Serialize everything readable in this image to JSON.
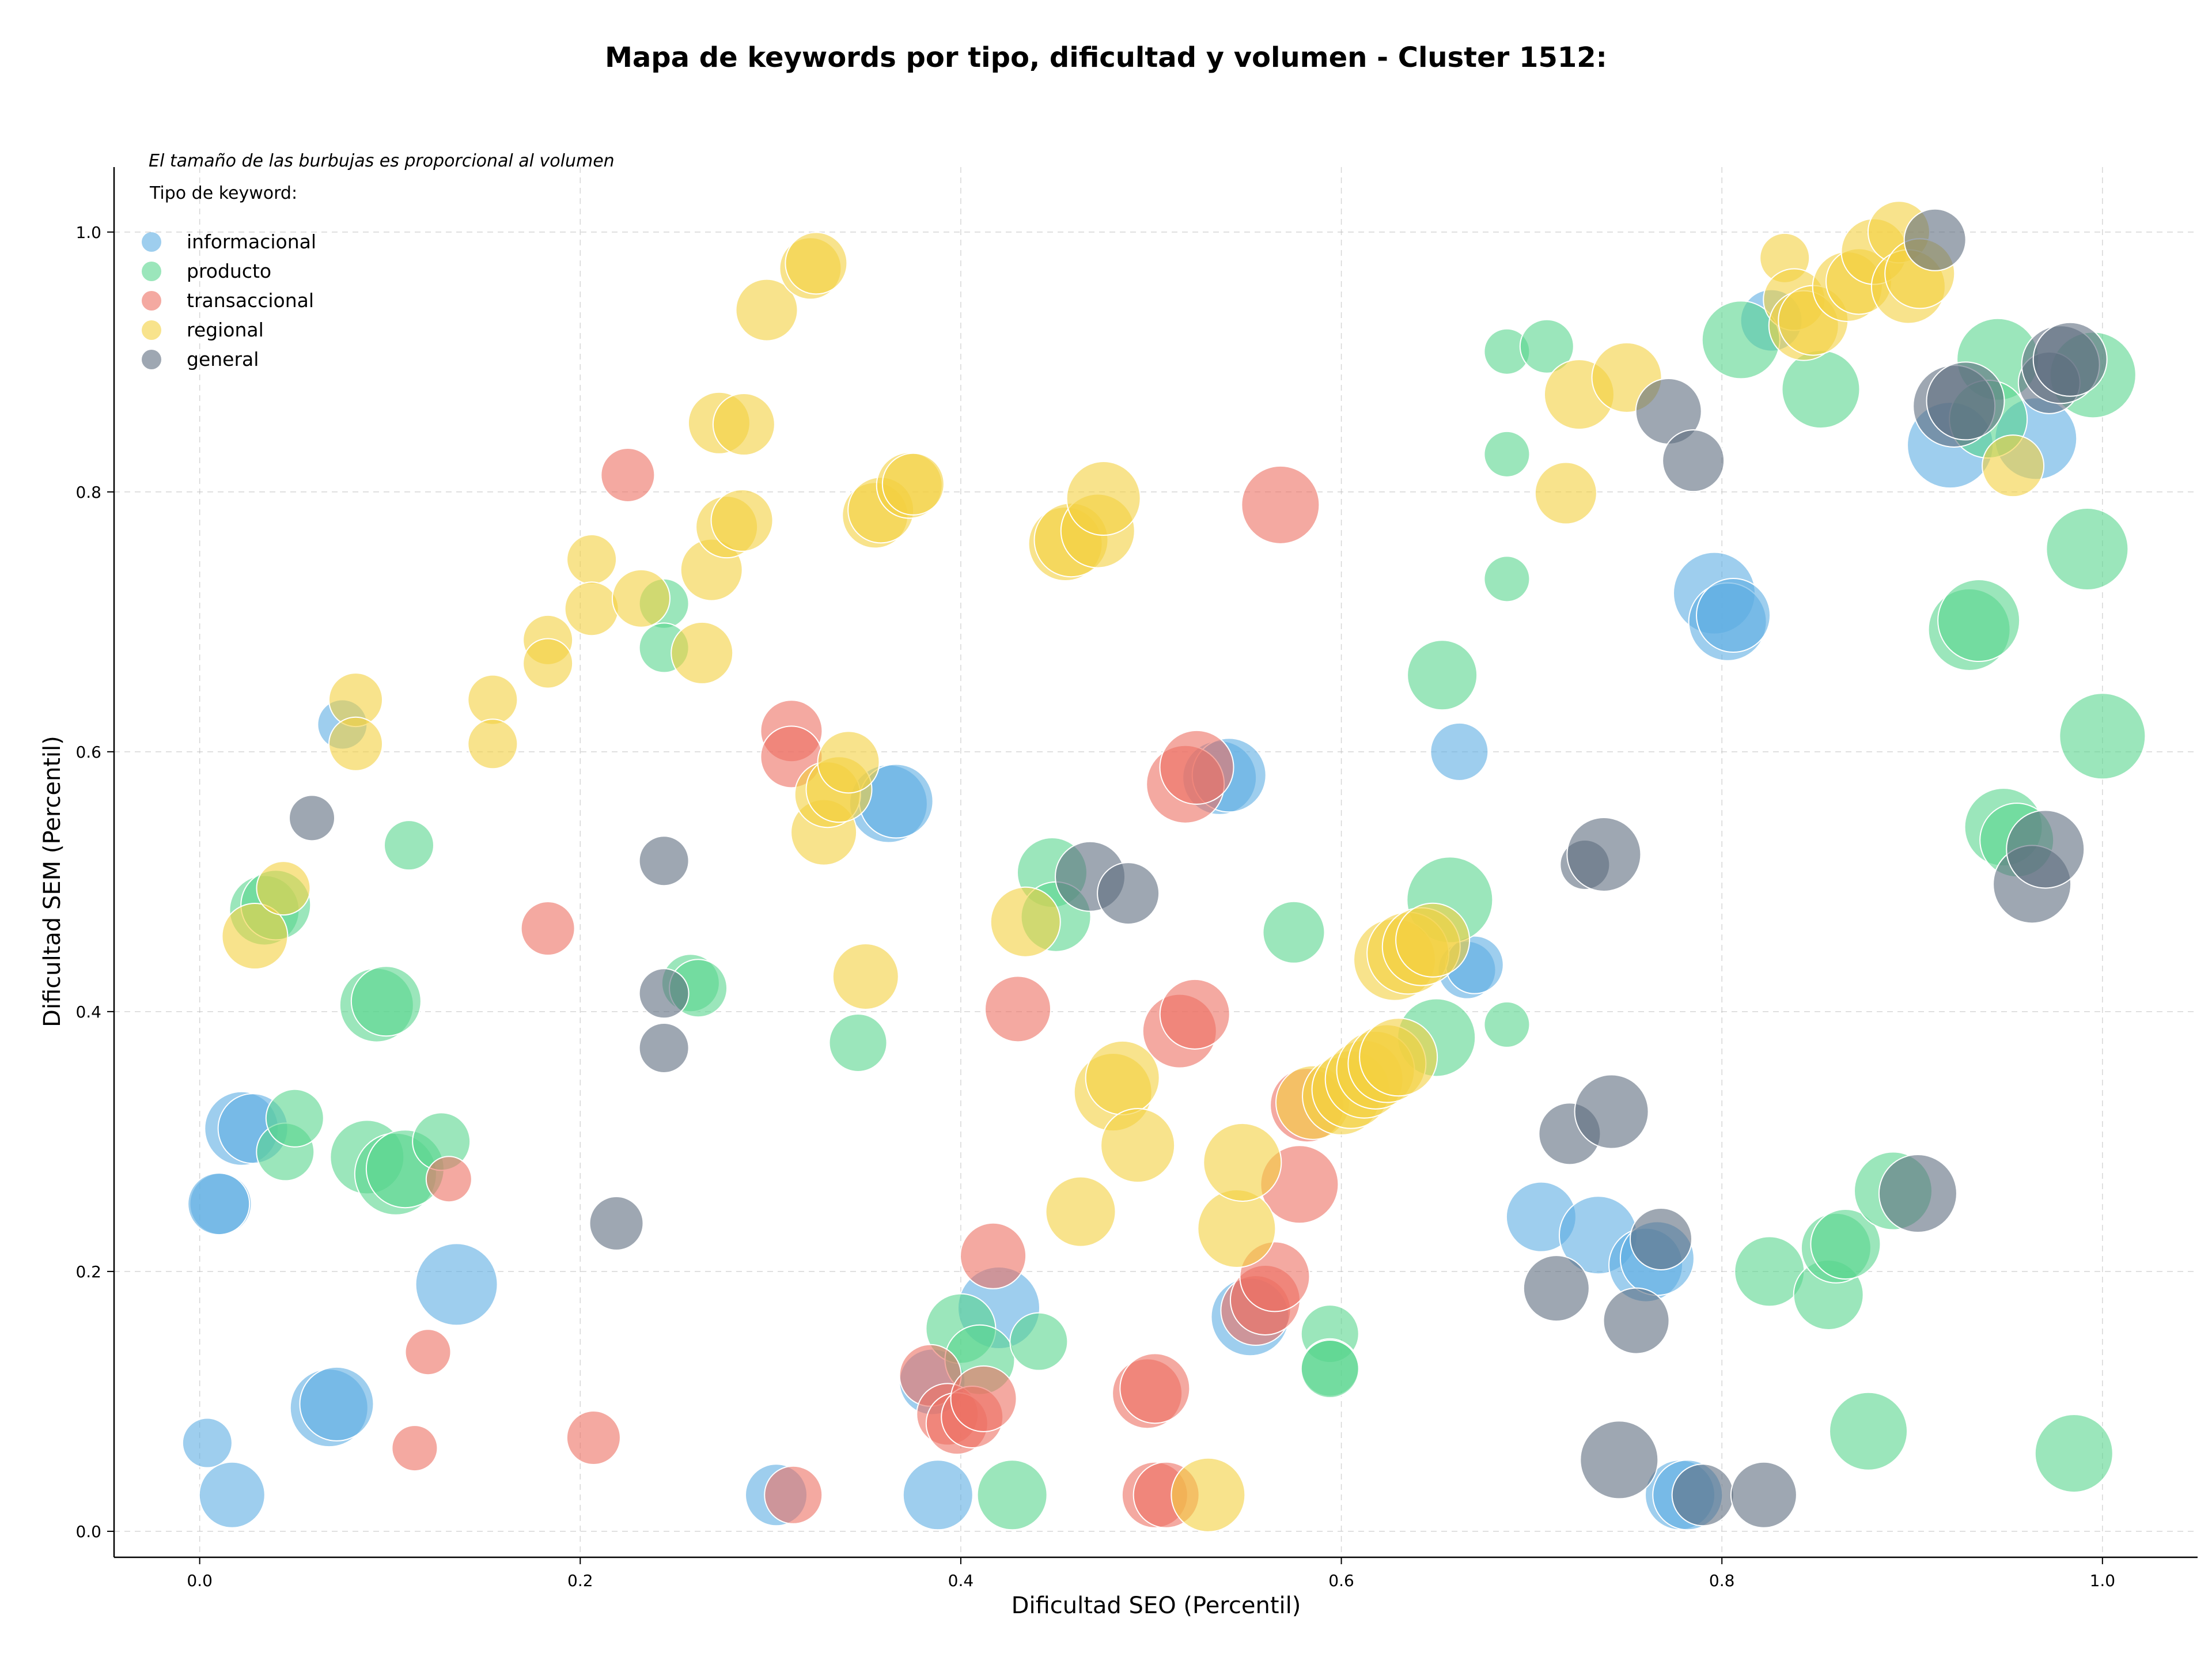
{
  "chart_data": {
    "type": "scatter",
    "title": "Mapa de keywords por tipo, dificultad y volumen - Cluster 1512:",
    "xlabel": "Dificultad SEO (Percentil)",
    "ylabel": "Dificultad SEM (Percentil)",
    "xlim": [
      -0.045,
      1.05
    ],
    "ylim": [
      -0.02,
      1.05
    ],
    "xticks": [
      0.0,
      0.2,
      0.4,
      0.6,
      0.8,
      1.0
    ],
    "yticks": [
      0.0,
      0.2,
      0.4,
      0.6,
      0.8,
      1.0
    ],
    "xtick_labels": [
      "0.0",
      "0.2",
      "0.4",
      "0.6",
      "0.8",
      "1.0"
    ],
    "ytick_labels": [
      "0.0",
      "0.2",
      "0.4",
      "0.6",
      "0.8",
      "1.0"
    ],
    "grid": true,
    "annotation": "El tamaño de las burbujas es proporcional al volumen",
    "legend": {
      "title": "Tipo de keyword:",
      "position": "top-left"
    },
    "series": [
      {
        "name": "informacional",
        "color": "#5DADE2",
        "points": [
          [
            0.004,
            0.068,
            0.3
          ],
          [
            0.017,
            0.028,
            0.5
          ],
          [
            0.011,
            0.252,
            0.45
          ],
          [
            0.01,
            0.252,
            0.45
          ],
          [
            0.022,
            0.31,
            0.6
          ],
          [
            0.028,
            0.31,
            0.55
          ],
          [
            0.075,
            0.621,
            0.3
          ],
          [
            0.068,
            0.095,
            0.65
          ],
          [
            0.072,
            0.098,
            0.6
          ],
          [
            0.135,
            0.19,
            0.7
          ],
          [
            0.303,
            0.028,
            0.45
          ],
          [
            0.388,
            0.028,
            0.55
          ],
          [
            0.385,
            0.115,
            0.5
          ],
          [
            0.42,
            0.172,
            0.7
          ],
          [
            0.362,
            0.56,
            0.65
          ],
          [
            0.366,
            0.562,
            0.6
          ],
          [
            0.536,
            0.58,
            0.6
          ],
          [
            0.541,
            0.582,
            0.6
          ],
          [
            0.552,
            0.165,
            0.65
          ],
          [
            0.662,
            0.6,
            0.4
          ],
          [
            0.666,
            0.432,
            0.4
          ],
          [
            0.67,
            0.436,
            0.4
          ],
          [
            0.705,
            0.242,
            0.55
          ],
          [
            0.735,
            0.228,
            0.65
          ],
          [
            0.76,
            0.205,
            0.6
          ],
          [
            0.766,
            0.21,
            0.6
          ],
          [
            0.778,
            0.028,
            0.55
          ],
          [
            0.782,
            0.028,
            0.55
          ],
          [
            0.796,
            0.722,
            0.7
          ],
          [
            0.803,
            0.7,
            0.65
          ],
          [
            0.806,
            0.705,
            0.6
          ],
          [
            0.826,
            0.932,
            0.45
          ],
          [
            0.92,
            0.836,
            0.75
          ],
          [
            0.965,
            0.841,
            0.7
          ]
        ]
      },
      {
        "name": "producto",
        "color": "#58D68D",
        "points": [
          [
            0.034,
            0.478,
            0.55
          ],
          [
            0.04,
            0.482,
            0.55
          ],
          [
            0.045,
            0.292,
            0.4
          ],
          [
            0.05,
            0.318,
            0.4
          ],
          [
            0.093,
            0.405,
            0.6
          ],
          [
            0.098,
            0.408,
            0.55
          ],
          [
            0.088,
            0.288,
            0.6
          ],
          [
            0.103,
            0.275,
            0.7
          ],
          [
            0.108,
            0.279,
            0.65
          ],
          [
            0.11,
            0.528,
            0.3
          ],
          [
            0.127,
            0.3,
            0.4
          ],
          [
            0.244,
            0.714,
            0.3
          ],
          [
            0.244,
            0.68,
            0.3
          ],
          [
            0.258,
            0.422,
            0.4
          ],
          [
            0.262,
            0.418,
            0.4
          ],
          [
            0.346,
            0.376,
            0.4
          ],
          [
            0.4,
            0.156,
            0.55
          ],
          [
            0.41,
            0.132,
            0.55
          ],
          [
            0.427,
            0.028,
            0.55
          ],
          [
            0.441,
            0.146,
            0.4
          ],
          [
            0.448,
            0.507,
            0.55
          ],
          [
            0.45,
            0.473,
            0.55
          ],
          [
            0.575,
            0.461,
            0.45
          ],
          [
            0.594,
            0.152,
            0.4
          ],
          [
            0.594,
            0.126,
            0.4
          ],
          [
            0.594,
            0.125,
            0.4
          ],
          [
            0.65,
            0.38,
            0.65
          ],
          [
            0.657,
            0.486,
            0.75
          ],
          [
            0.653,
            0.659,
            0.55
          ],
          [
            0.687,
            0.39,
            0.25
          ],
          [
            0.687,
            0.733,
            0.25
          ],
          [
            0.687,
            0.829,
            0.25
          ],
          [
            0.687,
            0.908,
            0.25
          ],
          [
            0.708,
            0.912,
            0.35
          ],
          [
            0.81,
            0.917,
            0.65
          ],
          [
            0.852,
            0.879,
            0.65
          ],
          [
            0.825,
            0.2,
            0.55
          ],
          [
            0.856,
            0.182,
            0.55
          ],
          [
            0.86,
            0.218,
            0.55
          ],
          [
            0.865,
            0.221,
            0.55
          ],
          [
            0.877,
            0.077,
            0.65
          ],
          [
            0.89,
            0.262,
            0.65
          ],
          [
            0.93,
            0.694,
            0.7
          ],
          [
            0.935,
            0.701,
            0.7
          ],
          [
            0.945,
            0.902,
            0.7
          ],
          [
            0.94,
            0.856,
            0.65
          ],
          [
            0.948,
            0.542,
            0.65
          ],
          [
            0.955,
            0.532,
            0.6
          ],
          [
            0.992,
            0.756,
            0.7
          ],
          [
            0.995,
            0.89,
            0.75
          ],
          [
            1.0,
            0.612,
            0.75
          ],
          [
            0.985,
            0.06,
            0.65
          ]
        ]
      },
      {
        "name": "transaccional",
        "color": "#EC7063",
        "points": [
          [
            0.113,
            0.064,
            0.25
          ],
          [
            0.12,
            0.138,
            0.25
          ],
          [
            0.131,
            0.271,
            0.25
          ],
          [
            0.183,
            0.464,
            0.35
          ],
          [
            0.207,
            0.072,
            0.35
          ],
          [
            0.225,
            0.813,
            0.35
          ],
          [
            0.311,
            0.616,
            0.45
          ],
          [
            0.311,
            0.596,
            0.45
          ],
          [
            0.312,
            0.028,
            0.4
          ],
          [
            0.384,
            0.12,
            0.45
          ],
          [
            0.393,
            0.09,
            0.45
          ],
          [
            0.398,
            0.083,
            0.45
          ],
          [
            0.406,
            0.088,
            0.45
          ],
          [
            0.412,
            0.102,
            0.5
          ],
          [
            0.417,
            0.212,
            0.5
          ],
          [
            0.43,
            0.402,
            0.5
          ],
          [
            0.498,
            0.106,
            0.55
          ],
          [
            0.502,
            0.11,
            0.55
          ],
          [
            0.502,
            0.028,
            0.5
          ],
          [
            0.508,
            0.028,
            0.5
          ],
          [
            0.515,
            0.385,
            0.6
          ],
          [
            0.523,
            0.398,
            0.55
          ],
          [
            0.518,
            0.575,
            0.65
          ],
          [
            0.524,
            0.588,
            0.6
          ],
          [
            0.555,
            0.17,
            0.55
          ],
          [
            0.56,
            0.178,
            0.55
          ],
          [
            0.565,
            0.196,
            0.55
          ],
          [
            0.568,
            0.79,
            0.65
          ],
          [
            0.578,
            0.267,
            0.65
          ],
          [
            0.582,
            0.328,
            0.6
          ]
        ]
      },
      {
        "name": "regional",
        "color": "#F4D03F",
        "points": [
          [
            0.029,
            0.458,
            0.5
          ],
          [
            0.044,
            0.495,
            0.35
          ],
          [
            0.082,
            0.64,
            0.35
          ],
          [
            0.082,
            0.606,
            0.35
          ],
          [
            0.154,
            0.64,
            0.3
          ],
          [
            0.154,
            0.606,
            0.3
          ],
          [
            0.183,
            0.686,
            0.3
          ],
          [
            0.183,
            0.668,
            0.3
          ],
          [
            0.206,
            0.748,
            0.3
          ],
          [
            0.206,
            0.71,
            0.35
          ],
          [
            0.232,
            0.718,
            0.4
          ],
          [
            0.264,
            0.676,
            0.45
          ],
          [
            0.269,
            0.74,
            0.45
          ],
          [
            0.273,
            0.853,
            0.45
          ],
          [
            0.277,
            0.773,
            0.45
          ],
          [
            0.285,
            0.778,
            0.45
          ],
          [
            0.286,
            0.852,
            0.45
          ],
          [
            0.298,
            0.94,
            0.45
          ],
          [
            0.321,
            0.972,
            0.45
          ],
          [
            0.324,
            0.976,
            0.45
          ],
          [
            0.328,
            0.538,
            0.5
          ],
          [
            0.33,
            0.567,
            0.5
          ],
          [
            0.336,
            0.571,
            0.5
          ],
          [
            0.341,
            0.592,
            0.45
          ],
          [
            0.35,
            0.427,
            0.5
          ],
          [
            0.355,
            0.782,
            0.5
          ],
          [
            0.358,
            0.786,
            0.5
          ],
          [
            0.373,
            0.805,
            0.5
          ],
          [
            0.375,
            0.806,
            0.45
          ],
          [
            0.434,
            0.469,
            0.55
          ],
          [
            0.455,
            0.76,
            0.6
          ],
          [
            0.458,
            0.763,
            0.6
          ],
          [
            0.463,
            0.246,
            0.55
          ],
          [
            0.472,
            0.77,
            0.6
          ],
          [
            0.475,
            0.795,
            0.6
          ],
          [
            0.48,
            0.338,
            0.65
          ],
          [
            0.485,
            0.349,
            0.6
          ],
          [
            0.493,
            0.297,
            0.6
          ],
          [
            0.53,
            0.028,
            0.6
          ],
          [
            0.545,
            0.233,
            0.65
          ],
          [
            0.548,
            0.284,
            0.65
          ],
          [
            0.585,
            0.33,
            0.6
          ],
          [
            0.6,
            0.335,
            0.65
          ],
          [
            0.605,
            0.34,
            0.65
          ],
          [
            0.612,
            0.348,
            0.65
          ],
          [
            0.618,
            0.355,
            0.65
          ],
          [
            0.624,
            0.36,
            0.65
          ],
          [
            0.63,
            0.365,
            0.65
          ],
          [
            0.628,
            0.44,
            0.7
          ],
          [
            0.635,
            0.445,
            0.7
          ],
          [
            0.642,
            0.45,
            0.65
          ],
          [
            0.648,
            0.455,
            0.6
          ],
          [
            0.718,
            0.799,
            0.45
          ],
          [
            0.725,
            0.875,
            0.55
          ],
          [
            0.75,
            0.888,
            0.55
          ],
          [
            0.833,
            0.98,
            0.3
          ],
          [
            0.838,
            0.948,
            0.45
          ],
          [
            0.843,
            0.928,
            0.55
          ],
          [
            0.848,
            0.932,
            0.55
          ],
          [
            0.866,
            0.958,
            0.55
          ],
          [
            0.872,
            0.962,
            0.5
          ],
          [
            0.88,
            0.985,
            0.5
          ],
          [
            0.893,
            1.0,
            0.45
          ],
          [
            0.898,
            0.958,
            0.6
          ],
          [
            0.904,
            0.968,
            0.55
          ],
          [
            0.953,
            0.82,
            0.45
          ]
        ]
      },
      {
        "name": "general",
        "color": "#5D6D7E",
        "points": [
          [
            0.059,
            0.549,
            0.25
          ],
          [
            0.219,
            0.237,
            0.35
          ],
          [
            0.244,
            0.516,
            0.3
          ],
          [
            0.244,
            0.414,
            0.3
          ],
          [
            0.244,
            0.372,
            0.3
          ],
          [
            0.468,
            0.504,
            0.55
          ],
          [
            0.488,
            0.491,
            0.45
          ],
          [
            0.713,
            0.187,
            0.5
          ],
          [
            0.72,
            0.306,
            0.45
          ],
          [
            0.728,
            0.513,
            0.3
          ],
          [
            0.738,
            0.521,
            0.6
          ],
          [
            0.742,
            0.323,
            0.6
          ],
          [
            0.746,
            0.055,
            0.65
          ],
          [
            0.755,
            0.162,
            0.5
          ],
          [
            0.768,
            0.225,
            0.45
          ],
          [
            0.772,
            0.862,
            0.5
          ],
          [
            0.785,
            0.824,
            0.45
          ],
          [
            0.79,
            0.028,
            0.45
          ],
          [
            0.822,
            0.028,
            0.5
          ],
          [
            0.903,
            0.26,
            0.65
          ],
          [
            0.912,
            0.994,
            0.45
          ],
          [
            0.922,
            0.866,
            0.7
          ],
          [
            0.928,
            0.87,
            0.65
          ],
          [
            0.963,
            0.498,
            0.65
          ],
          [
            0.97,
            0.525,
            0.65
          ],
          [
            0.972,
            0.884,
            0.45
          ],
          [
            0.978,
            0.898,
            0.65
          ],
          [
            0.983,
            0.902,
            0.6
          ]
        ]
      }
    ]
  }
}
